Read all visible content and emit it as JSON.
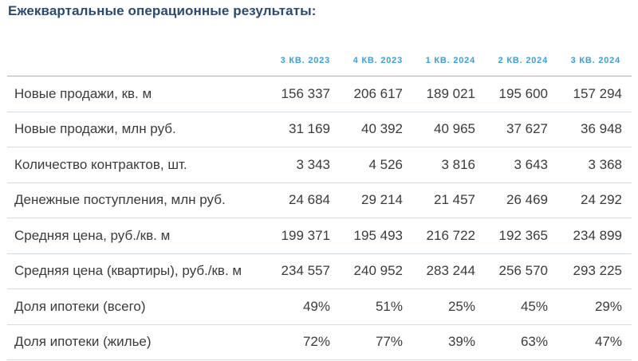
{
  "title": "Ежеквартальные операционные результаты:",
  "columns": [
    "3 КВ. 2023",
    "4 КВ. 2023",
    "1 КВ. 2024",
    "2 КВ. 2024",
    "3 КВ. 2024"
  ],
  "rows": [
    {
      "label": "Новые продажи, кв. м",
      "values": [
        "156 337",
        "206 617",
        "189 021",
        "195 600",
        "157 294"
      ]
    },
    {
      "label": "Новые продажи, млн руб.",
      "values": [
        "31 169",
        "40 392",
        "40 965",
        "37 627",
        "36 948"
      ]
    },
    {
      "label": "Количество контрактов, шт.",
      "values": [
        "3 343",
        "4 526",
        "3 816",
        "3 643",
        "3 368"
      ]
    },
    {
      "label": "Денежные поступления, млн руб.",
      "values": [
        "24 684",
        "29 214",
        "21 457",
        "26 469",
        "24 292"
      ]
    },
    {
      "label": "Средняя цена, руб./кв. м",
      "values": [
        "199 371",
        "195 493",
        "216 722",
        "192 365",
        "234 899"
      ]
    },
    {
      "label": "Средняя цена (квартиры), руб./кв. м",
      "values": [
        "234 557",
        "240 952",
        "283 244",
        "256 570",
        "293 225"
      ]
    },
    {
      "label": "Доля ипотеки (всего)",
      "values": [
        "49%",
        "51%",
        "25%",
        "45%",
        "29%"
      ]
    },
    {
      "label": "Доля ипотеки (жилье)",
      "values": [
        "72%",
        "77%",
        "39%",
        "63%",
        "47%"
      ]
    }
  ],
  "colors": {
    "title": "#2b4a6f",
    "header": "#3aa0d8",
    "text": "#3b3b3b",
    "rule": "#d3dbe3"
  }
}
